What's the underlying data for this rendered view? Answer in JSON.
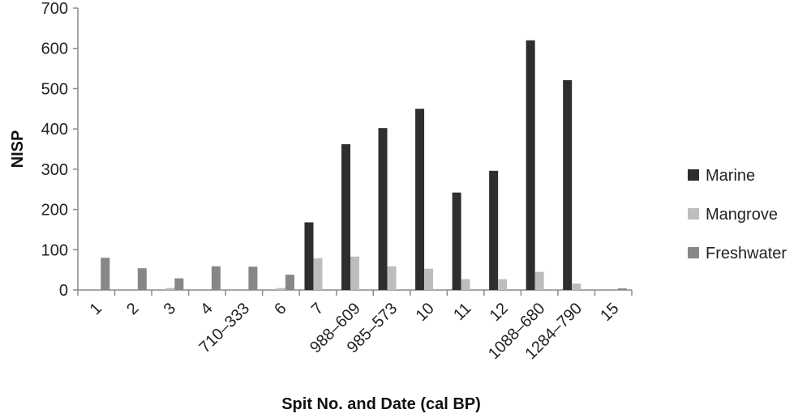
{
  "chart_data": {
    "type": "bar",
    "title": "",
    "xlabel": "Spit No. and Date (cal BP)",
    "ylabel": "NISP",
    "ylim": [
      0,
      700
    ],
    "yticks": [
      0,
      100,
      200,
      300,
      400,
      500,
      600,
      700
    ],
    "grid": false,
    "legend_position": "right",
    "categories": [
      "1",
      "2",
      "3",
      "4",
      "710–333",
      "6",
      "7",
      "988–609",
      "985–573",
      "10",
      "11",
      "12",
      "1088–680",
      "1284–790",
      "15"
    ],
    "series": [
      {
        "name": "Marine",
        "color": "#2e2e2e",
        "values": [
          0,
          0,
          0,
          0,
          0,
          0,
          168,
          362,
          402,
          450,
          242,
          296,
          620,
          521,
          0
        ]
      },
      {
        "name": "Mangrove",
        "color": "#bdbdbd",
        "values": [
          0,
          0,
          5,
          0,
          0,
          5,
          79,
          83,
          59,
          53,
          27,
          27,
          45,
          16,
          0
        ]
      },
      {
        "name": "Freshwater",
        "color": "#878787",
        "values": [
          80,
          54,
          29,
          59,
          58,
          38,
          0,
          0,
          0,
          0,
          0,
          0,
          0,
          0,
          4
        ]
      }
    ]
  }
}
